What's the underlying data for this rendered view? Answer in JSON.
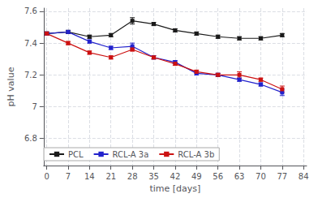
{
  "chart_data": {
    "type": "line",
    "xlabel": "time [days]",
    "ylabel": "pH value",
    "x": [
      0,
      7,
      14,
      21,
      28,
      35,
      42,
      49,
      56,
      63,
      70,
      77
    ],
    "series": [
      {
        "name": "PCL",
        "color": "#1a1a1a",
        "marker": "square",
        "values": [
          7.46,
          7.47,
          7.44,
          7.45,
          7.54,
          7.52,
          7.48,
          7.46,
          7.44,
          7.43,
          7.43,
          7.45
        ],
        "errors": [
          0.01,
          0.01,
          0.01,
          0.01,
          0.02,
          0.01,
          0.01,
          0.01,
          0.01,
          0.01,
          0.01,
          0.01
        ]
      },
      {
        "name": "RCL-A 3a",
        "color": "#2222cc",
        "marker": "square",
        "values": [
          7.46,
          7.47,
          7.41,
          7.37,
          7.38,
          7.31,
          7.28,
          7.21,
          7.2,
          7.17,
          7.14,
          7.09
        ],
        "errors": [
          0.01,
          0.01,
          0.01,
          0.01,
          0.02,
          0.01,
          0.01,
          0.01,
          0.01,
          0.01,
          0.01,
          0.02
        ]
      },
      {
        "name": "RCL-A 3b",
        "color": "#cc1111",
        "marker": "square",
        "values": [
          7.46,
          7.4,
          7.34,
          7.31,
          7.36,
          7.31,
          7.27,
          7.22,
          7.2,
          7.2,
          7.17,
          7.11
        ],
        "errors": [
          0.01,
          0.01,
          0.01,
          0.01,
          0.01,
          0.01,
          0.01,
          0.01,
          0.01,
          0.02,
          0.01,
          0.02
        ]
      }
    ],
    "xlim": [
      -1,
      85
    ],
    "ylim": [
      6.63,
      7.62
    ],
    "xticks": [
      0,
      7,
      14,
      21,
      28,
      35,
      42,
      49,
      56,
      63,
      70,
      77,
      84
    ],
    "yticks": [
      6.8,
      7.0,
      7.2,
      7.4,
      7.6
    ],
    "grid": true,
    "legend": "lower left"
  }
}
